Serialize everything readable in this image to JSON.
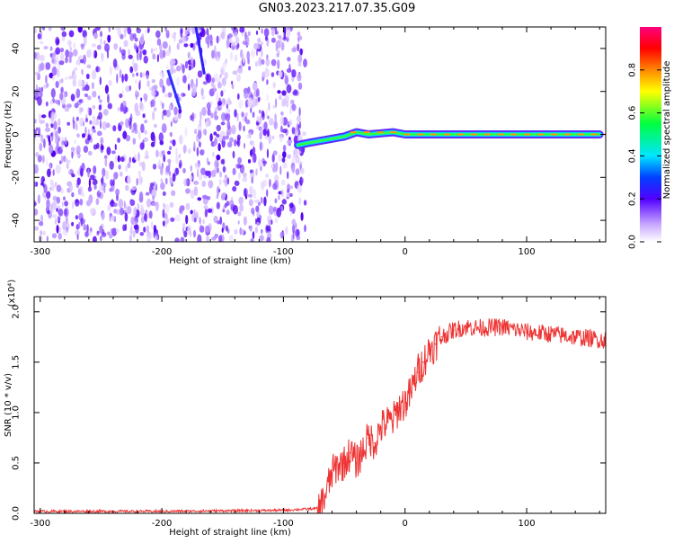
{
  "page": {
    "title": "GN03.2023.217.07.35.G09"
  },
  "chart_data": [
    {
      "type": "heatmap",
      "title": "GN03.2023.217.07.35.G09",
      "xlabel": "Height of straight line (km)",
      "ylabel": "Frequency (Hz)",
      "xlim": [
        -305,
        165
      ],
      "ylim": [
        -50,
        50
      ],
      "xticks": [
        -300,
        -200,
        -100,
        0,
        100
      ],
      "yticks": [
        -40,
        -20,
        0,
        20,
        40
      ],
      "noise_region_x": [
        -305,
        -82
      ],
      "signal_trace": {
        "x": [
          -88,
          -80,
          -70,
          -60,
          -50,
          -40,
          -30,
          -20,
          -10,
          0,
          20,
          40,
          60,
          80,
          100,
          120,
          140,
          160
        ],
        "y": [
          -5,
          -4,
          -3,
          -2,
          -1,
          1,
          0,
          0.5,
          1,
          0,
          0,
          0,
          0,
          0,
          0,
          0,
          0,
          0
        ]
      },
      "colorbar": {
        "label": "Normalized spectral amplitude",
        "ticks": [
          0.0,
          0.2,
          0.4,
          0.6,
          0.8
        ],
        "range": [
          0,
          1
        ]
      }
    },
    {
      "type": "line",
      "xlabel": "Height of straight line (km)",
      "ylabel": "SNR (10 * v/v)",
      "scale_label": "(x10⁴)",
      "xlim": [
        -305,
        165
      ],
      "ylim": [
        0,
        2.15
      ],
      "xticks": [
        -300,
        -200,
        -100,
        0,
        100
      ],
      "yticks": [
        0.0,
        0.5,
        1.0,
        1.5,
        2.0
      ],
      "series": [
        {
          "color": "#ee3333",
          "x": [
            -305,
            -200,
            -100,
            -70,
            -65,
            -60,
            -55,
            -50,
            -45,
            -40,
            -35,
            -30,
            -25,
            -20,
            -15,
            -10,
            -5,
            0,
            5,
            10,
            15,
            20,
            25,
            30,
            40,
            50,
            60,
            80,
            100,
            120,
            140,
            165
          ],
          "y": [
            0.02,
            0.02,
            0.03,
            0.05,
            0.2,
            0.4,
            0.48,
            0.5,
            0.6,
            0.5,
            0.62,
            0.75,
            0.7,
            0.85,
            0.9,
            0.92,
            1.05,
            1.1,
            1.2,
            1.4,
            1.5,
            1.62,
            1.68,
            1.75,
            1.82,
            1.85,
            1.84,
            1.85,
            1.8,
            1.78,
            1.75,
            1.72
          ]
        }
      ]
    }
  ]
}
